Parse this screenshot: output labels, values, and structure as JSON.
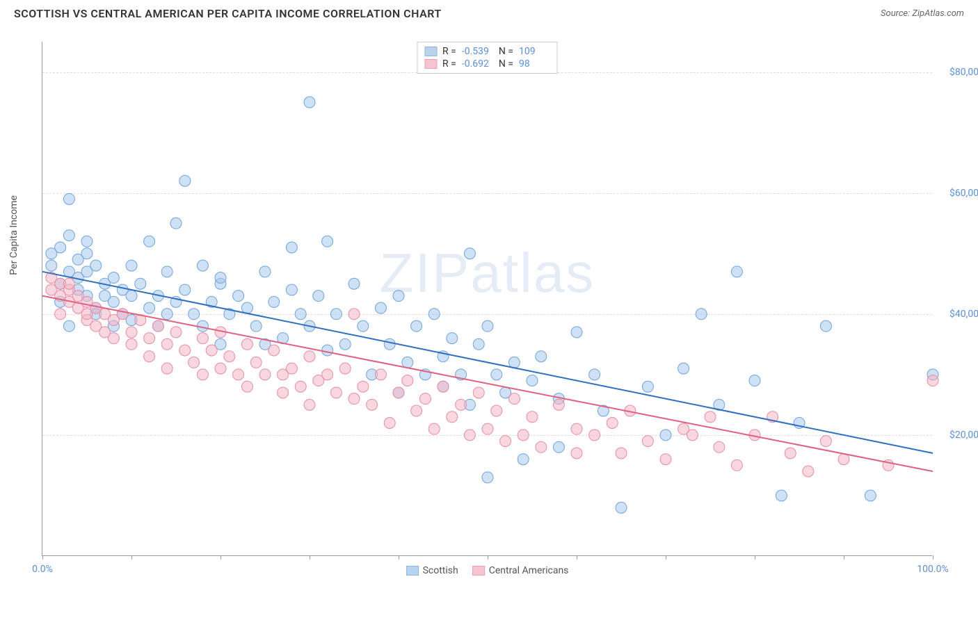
{
  "title": "SCOTTISH VS CENTRAL AMERICAN PER CAPITA INCOME CORRELATION CHART",
  "source": "Source: ZipAtlas.com",
  "watermark": "ZIPatlas",
  "y_axis_label": "Per Capita Income",
  "chart": {
    "type": "scatter",
    "xlim": [
      0,
      100
    ],
    "ylim": [
      0,
      85000
    ],
    "x_tick_positions": [
      0,
      10,
      20,
      30,
      40,
      50,
      60,
      70,
      80,
      90,
      100
    ],
    "x_tick_labels": {
      "0": "0.0%",
      "100": "100.0%"
    },
    "y_gridlines": [
      20000,
      40000,
      60000,
      80000
    ],
    "y_tick_labels": {
      "20000": "$20,000",
      "40000": "$40,000",
      "60000": "$60,000",
      "80000": "$80,000"
    },
    "background_color": "#ffffff",
    "grid_color": "#dddddd",
    "axis_color": "#999999",
    "label_color": "#5b8fd6"
  },
  "series": [
    {
      "name": "Scottish",
      "fill": "#a8c8eb",
      "stroke": "#6fa3dd",
      "fill_opacity": 0.55,
      "trend_color": "#2f6fc0",
      "trend_width": 2,
      "trend": {
        "x1": 0,
        "y1": 47000,
        "x2": 100,
        "y2": 17000
      },
      "R": "-0.539",
      "N": "109",
      "marker_radius": 8,
      "points": [
        [
          1,
          48000
        ],
        [
          1,
          50000
        ],
        [
          2,
          45000
        ],
        [
          2,
          51000
        ],
        [
          2,
          42000
        ],
        [
          3,
          47000
        ],
        [
          3,
          53000
        ],
        [
          3,
          38000
        ],
        [
          3,
          59000
        ],
        [
          4,
          49000
        ],
        [
          4,
          44000
        ],
        [
          4,
          46000
        ],
        [
          5,
          50000
        ],
        [
          5,
          43000
        ],
        [
          5,
          47000
        ],
        [
          5,
          52000
        ],
        [
          6,
          41000
        ],
        [
          6,
          48000
        ],
        [
          6,
          40000
        ],
        [
          7,
          45000
        ],
        [
          7,
          43000
        ],
        [
          8,
          42000
        ],
        [
          8,
          46000
        ],
        [
          8,
          38000
        ],
        [
          9,
          44000
        ],
        [
          9,
          40000
        ],
        [
          10,
          43000
        ],
        [
          10,
          48000
        ],
        [
          10,
          39000
        ],
        [
          11,
          45000
        ],
        [
          12,
          52000
        ],
        [
          12,
          41000
        ],
        [
          13,
          43000
        ],
        [
          13,
          38000
        ],
        [
          14,
          47000
        ],
        [
          14,
          40000
        ],
        [
          15,
          55000
        ],
        [
          15,
          42000
        ],
        [
          16,
          44000
        ],
        [
          16,
          62000
        ],
        [
          17,
          40000
        ],
        [
          18,
          48000
        ],
        [
          18,
          38000
        ],
        [
          19,
          42000
        ],
        [
          20,
          45000
        ],
        [
          20,
          46000
        ],
        [
          20,
          35000
        ],
        [
          21,
          40000
        ],
        [
          22,
          43000
        ],
        [
          23,
          41000
        ],
        [
          24,
          38000
        ],
        [
          25,
          47000
        ],
        [
          25,
          35000
        ],
        [
          26,
          42000
        ],
        [
          27,
          36000
        ],
        [
          28,
          44000
        ],
        [
          28,
          51000
        ],
        [
          29,
          40000
        ],
        [
          30,
          38000
        ],
        [
          30,
          75000
        ],
        [
          31,
          43000
        ],
        [
          32,
          52000
        ],
        [
          32,
          34000
        ],
        [
          33,
          40000
        ],
        [
          34,
          35000
        ],
        [
          35,
          45000
        ],
        [
          36,
          38000
        ],
        [
          37,
          30000
        ],
        [
          38,
          41000
        ],
        [
          39,
          35000
        ],
        [
          40,
          43000
        ],
        [
          40,
          27000
        ],
        [
          41,
          32000
        ],
        [
          42,
          38000
        ],
        [
          43,
          30000
        ],
        [
          44,
          40000
        ],
        [
          45,
          33000
        ],
        [
          45,
          28000
        ],
        [
          46,
          36000
        ],
        [
          47,
          30000
        ],
        [
          48,
          50000
        ],
        [
          48,
          25000
        ],
        [
          49,
          35000
        ],
        [
          50,
          13000
        ],
        [
          50,
          38000
        ],
        [
          51,
          30000
        ],
        [
          52,
          27000
        ],
        [
          53,
          32000
        ],
        [
          54,
          16000
        ],
        [
          55,
          29000
        ],
        [
          56,
          33000
        ],
        [
          58,
          26000
        ],
        [
          58,
          18000
        ],
        [
          60,
          37000
        ],
        [
          62,
          30000
        ],
        [
          63,
          24000
        ],
        [
          65,
          8000
        ],
        [
          68,
          28000
        ],
        [
          70,
          20000
        ],
        [
          72,
          31000
        ],
        [
          74,
          40000
        ],
        [
          76,
          25000
        ],
        [
          78,
          47000
        ],
        [
          80,
          29000
        ],
        [
          83,
          10000
        ],
        [
          85,
          22000
        ],
        [
          88,
          38000
        ],
        [
          93,
          10000
        ],
        [
          100,
          30000
        ]
      ]
    },
    {
      "name": "Central Americans",
      "fill": "#f4b6c6",
      "stroke": "#e88ba5",
      "fill_opacity": 0.55,
      "trend_color": "#e0607f",
      "trend_width": 2,
      "trend": {
        "x1": 0,
        "y1": 43000,
        "x2": 100,
        "y2": 14000
      },
      "R": "-0.692",
      "N": "98",
      "marker_radius": 8,
      "points": [
        [
          1,
          44000
        ],
        [
          1,
          46000
        ],
        [
          2,
          43000
        ],
        [
          2,
          45000
        ],
        [
          2,
          40000
        ],
        [
          3,
          42000
        ],
        [
          3,
          44000
        ],
        [
          3,
          45000
        ],
        [
          4,
          41000
        ],
        [
          4,
          43000
        ],
        [
          5,
          39000
        ],
        [
          5,
          40000
        ],
        [
          5,
          42000
        ],
        [
          6,
          41000
        ],
        [
          6,
          38000
        ],
        [
          7,
          40000
        ],
        [
          7,
          37000
        ],
        [
          8,
          39000
        ],
        [
          8,
          36000
        ],
        [
          9,
          40000
        ],
        [
          10,
          37000
        ],
        [
          10,
          35000
        ],
        [
          11,
          39000
        ],
        [
          12,
          36000
        ],
        [
          12,
          33000
        ],
        [
          13,
          38000
        ],
        [
          14,
          35000
        ],
        [
          14,
          31000
        ],
        [
          15,
          37000
        ],
        [
          16,
          34000
        ],
        [
          17,
          32000
        ],
        [
          18,
          36000
        ],
        [
          18,
          30000
        ],
        [
          19,
          34000
        ],
        [
          20,
          31000
        ],
        [
          20,
          37000
        ],
        [
          21,
          33000
        ],
        [
          22,
          30000
        ],
        [
          23,
          35000
        ],
        [
          23,
          28000
        ],
        [
          24,
          32000
        ],
        [
          25,
          30000
        ],
        [
          26,
          34000
        ],
        [
          27,
          30000
        ],
        [
          27,
          27000
        ],
        [
          28,
          31000
        ],
        [
          29,
          28000
        ],
        [
          30,
          33000
        ],
        [
          30,
          25000
        ],
        [
          31,
          29000
        ],
        [
          32,
          30000
        ],
        [
          33,
          27000
        ],
        [
          34,
          31000
        ],
        [
          35,
          26000
        ],
        [
          35,
          40000
        ],
        [
          36,
          28000
        ],
        [
          37,
          25000
        ],
        [
          38,
          30000
        ],
        [
          39,
          22000
        ],
        [
          40,
          27000
        ],
        [
          41,
          29000
        ],
        [
          42,
          24000
        ],
        [
          43,
          26000
        ],
        [
          44,
          21000
        ],
        [
          45,
          28000
        ],
        [
          46,
          23000
        ],
        [
          47,
          25000
        ],
        [
          48,
          20000
        ],
        [
          49,
          27000
        ],
        [
          50,
          21000
        ],
        [
          51,
          24000
        ],
        [
          52,
          19000
        ],
        [
          53,
          26000
        ],
        [
          54,
          20000
        ],
        [
          55,
          23000
        ],
        [
          56,
          18000
        ],
        [
          58,
          25000
        ],
        [
          60,
          21000
        ],
        [
          60,
          17000
        ],
        [
          62,
          20000
        ],
        [
          64,
          22000
        ],
        [
          65,
          17000
        ],
        [
          66,
          24000
        ],
        [
          68,
          19000
        ],
        [
          70,
          16000
        ],
        [
          72,
          21000
        ],
        [
          73,
          20000
        ],
        [
          75,
          23000
        ],
        [
          76,
          18000
        ],
        [
          78,
          15000
        ],
        [
          80,
          20000
        ],
        [
          82,
          23000
        ],
        [
          84,
          17000
        ],
        [
          86,
          14000
        ],
        [
          88,
          19000
        ],
        [
          90,
          16000
        ],
        [
          95,
          15000
        ],
        [
          100,
          29000
        ]
      ]
    }
  ],
  "legend": {
    "series1_label": "Scottish",
    "series2_label": "Central Americans"
  },
  "stats_labels": {
    "R": "R =",
    "N": "N ="
  }
}
